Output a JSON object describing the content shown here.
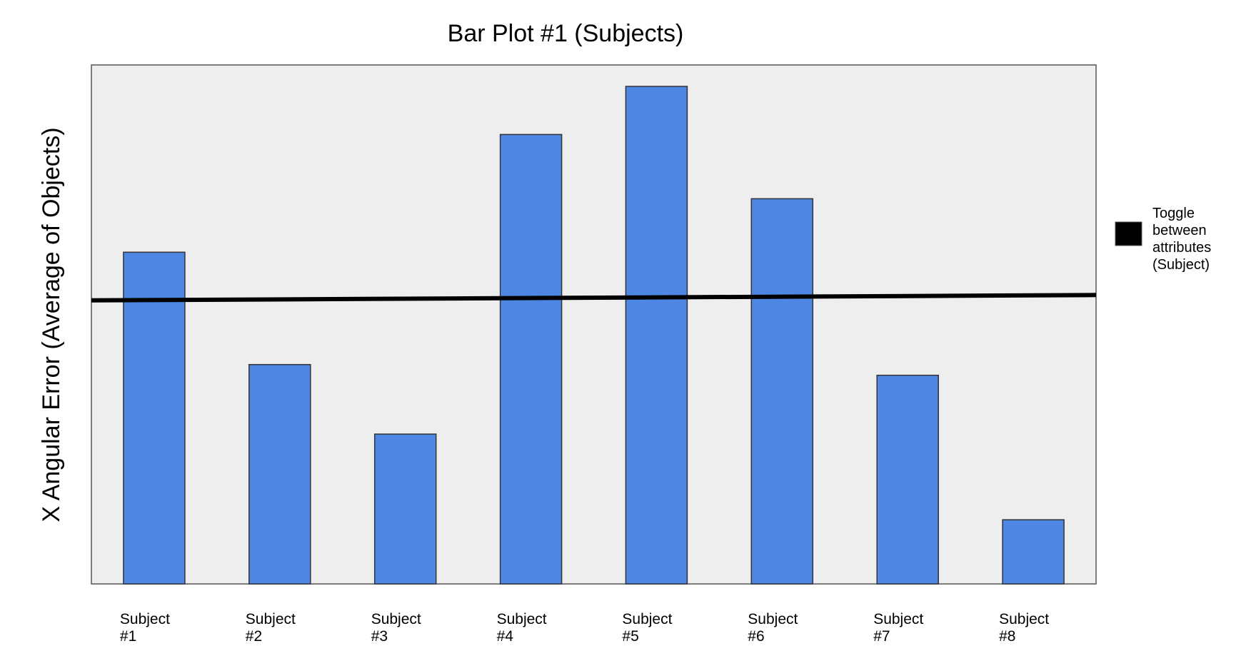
{
  "chart_data": {
    "type": "bar",
    "title": "Bar Plot #1 (Subjects)",
    "xlabel": "",
    "ylabel": "X Angular Error (Average of Objects)",
    "categories": [
      "Subject #1",
      "Subject #2",
      "Subject #3",
      "Subject #4",
      "Subject #5",
      "Subject #6",
      "Subject #7",
      "Subject #8"
    ],
    "category_lines": [
      [
        "Subject",
        "#1"
      ],
      [
        "Subject",
        "#2"
      ],
      [
        "Subject",
        "#3"
      ],
      [
        "Subject",
        "#4"
      ],
      [
        "Subject",
        "#5"
      ],
      [
        "Subject",
        "#6"
      ],
      [
        "Subject",
        "#7"
      ],
      [
        "Subject",
        "#8"
      ]
    ],
    "values": [
      0.62,
      0.41,
      0.28,
      0.84,
      0.93,
      0.72,
      0.39,
      0.12
    ],
    "reference_line": {
      "start": 0.53,
      "end": 0.54
    },
    "ylim": [
      0,
      0.97
    ],
    "grid": false,
    "bar_color": "#4d87e3",
    "plot_background": "#eeeeee",
    "line_color": "#000000",
    "legend": {
      "position": "right",
      "entries": [
        {
          "label_lines": [
            "Toggle",
            "between",
            "attributes",
            "(Subject)"
          ],
          "color": "#000000"
        }
      ]
    }
  }
}
